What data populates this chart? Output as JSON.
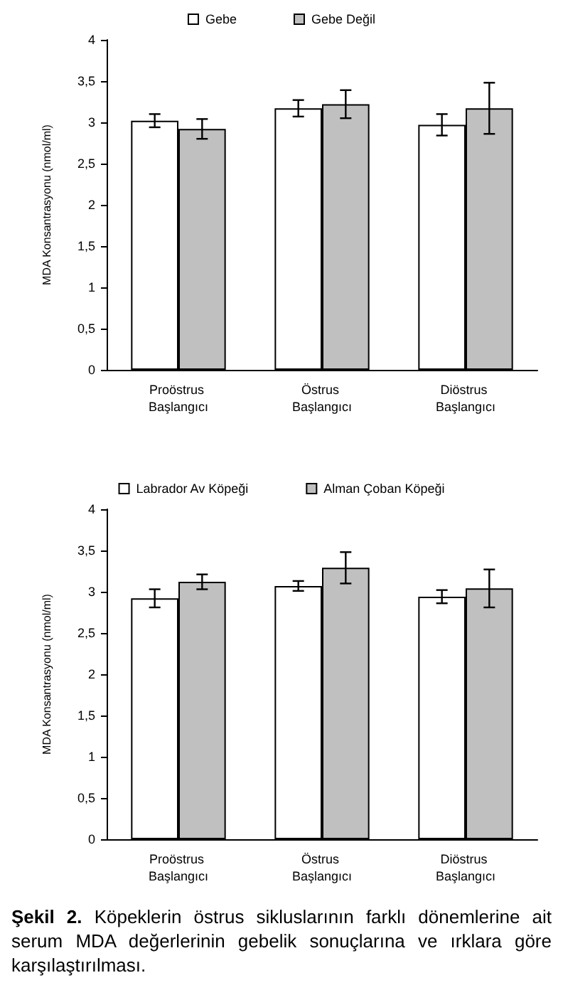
{
  "chart_data": [
    {
      "type": "bar",
      "ylabel": "MDA Konsantrasyonu (nmol/ml)",
      "categories": [
        "Proöstrus Başlangıcı",
        "Östrus Başlangıcı",
        "Diöstrus Başlangıcı"
      ],
      "series": [
        {
          "name": "Gebe",
          "color": "#ffffff",
          "values": [
            3.02,
            3.17,
            2.97
          ],
          "errors": [
            0.08,
            0.1,
            0.13
          ]
        },
        {
          "name": "Gebe Değil",
          "color": "#c0c0c0",
          "values": [
            2.92,
            3.22,
            3.17
          ],
          "errors": [
            0.12,
            0.17,
            0.31
          ]
        }
      ],
      "ylim": [
        0,
        4
      ],
      "yticks": [
        0,
        {
          "value": 0.5,
          "label": "0,5"
        },
        1,
        {
          "value": 1.5,
          "label": "1,5"
        },
        2,
        {
          "value": 2.5,
          "label": "2,5"
        },
        3,
        {
          "value": 3.5,
          "label": "3,5"
        },
        4
      ],
      "grid": false,
      "legend": "top"
    },
    {
      "type": "bar",
      "ylabel": "MDA Konsantrasyonu (nmol/ml)",
      "categories": [
        "Proöstrus Başlangıcı",
        "Östrus Başlangıcı",
        "Diöstrus Başlangıcı"
      ],
      "series": [
        {
          "name": "Labrador Av Köpeği",
          "color": "#ffffff",
          "values": [
            2.92,
            3.07,
            2.94
          ],
          "errors": [
            0.11,
            0.06,
            0.08
          ]
        },
        {
          "name": "Alman Çoban Köpeği",
          "color": "#c0c0c0",
          "values": [
            3.12,
            3.29,
            3.04
          ],
          "errors": [
            0.09,
            0.19,
            0.23
          ]
        }
      ],
      "ylim": [
        0,
        4
      ],
      "yticks": [
        0,
        {
          "value": 0.5,
          "label": "0,5"
        },
        1,
        {
          "value": 1.5,
          "label": "1,5"
        },
        2,
        {
          "value": 2.5,
          "label": "2,5"
        },
        3,
        {
          "value": 3.5,
          "label": "3,5"
        },
        4
      ],
      "grid": false,
      "legend": "top",
      "annotations": [
        "Şekil 2.",
        "Köpeklerin östrus sikluslarının farklı dönemlerine ait serum MDA değerlerinin gebelik sonuçlarına ve ırklara göre karşılaştırılması."
      ]
    }
  ]
}
